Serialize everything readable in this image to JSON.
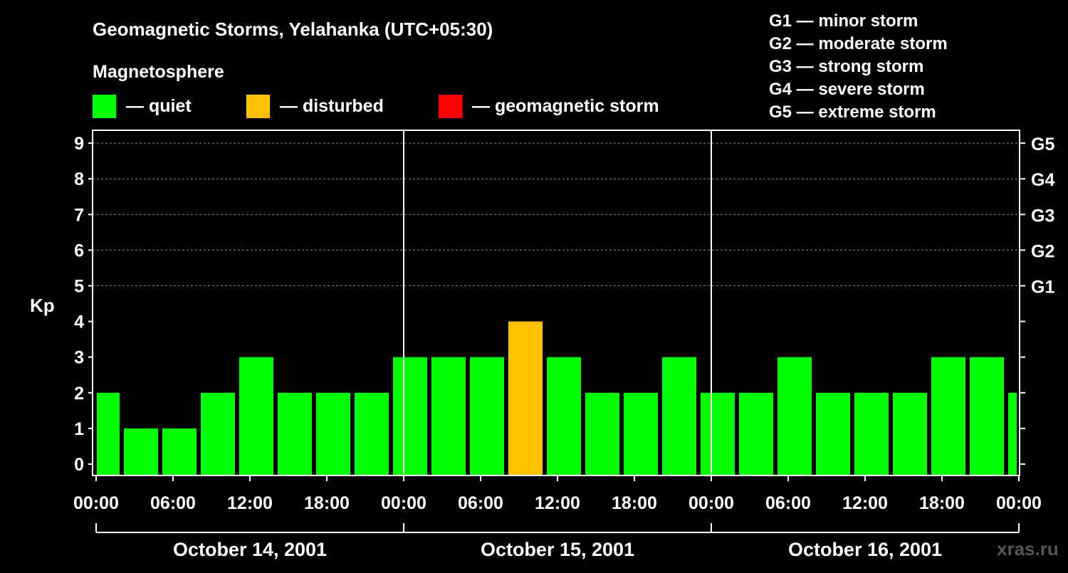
{
  "chart_data": {
    "type": "bar",
    "title": "Geomagnetic Storms, Yelahanka (UTC+05:30)",
    "legend_title": "Magnetosphere",
    "legend": [
      {
        "label": "— quiet",
        "color": "#00ff00"
      },
      {
        "label": "— disturbed",
        "color": "#ffc000"
      },
      {
        "label": "— geomagnetic storm",
        "color": "#ff0000"
      }
    ],
    "storm_scale": [
      "G1 — minor storm",
      "G2 — moderate storm",
      "G3 — strong storm",
      "G4 — severe storm",
      "G5 — extreme storm"
    ],
    "ylabel": "Kp",
    "ylim": [
      0,
      9
    ],
    "yticks": [
      "0",
      "1",
      "2",
      "3",
      "4",
      "5",
      "6",
      "7",
      "8",
      "9"
    ],
    "right_ticks": [
      {
        "kp": 5,
        "label": "G1"
      },
      {
        "kp": 6,
        "label": "G2"
      },
      {
        "kp": 7,
        "label": "G3"
      },
      {
        "kp": 8,
        "label": "G4"
      },
      {
        "kp": 9,
        "label": "G5"
      }
    ],
    "xlim_hours": [
      0,
      72
    ],
    "xtick_labels": [
      "00:00",
      "06:00",
      "12:00",
      "18:00",
      "00:00",
      "06:00",
      "12:00",
      "18:00",
      "00:00",
      "06:00",
      "12:00",
      "18:00",
      "00:00"
    ],
    "days": [
      "October 14, 2001",
      "October 15, 2001",
      "October 16, 2001"
    ],
    "bin_hours": 3,
    "first_bin_start_hour": -1,
    "values": [
      2,
      1,
      1,
      2,
      3,
      2,
      2,
      2,
      3,
      3,
      3,
      4,
      3,
      2,
      2,
      3,
      2,
      2,
      3,
      2,
      2,
      2,
      3,
      3,
      2
    ],
    "watermark": "xras.ru"
  }
}
